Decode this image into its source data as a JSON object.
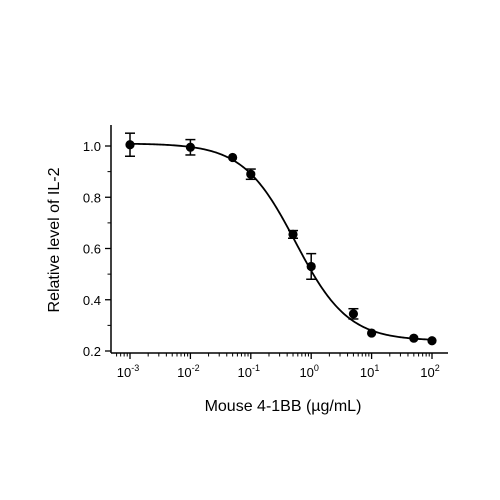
{
  "chart_data": {
    "type": "scatter",
    "title": "",
    "xlabel": "Mouse 4-1BB (µg/mL)",
    "ylabel": "Relative level of IL-2",
    "xscale": "log",
    "xlim": [
      0.0005,
      150
    ],
    "ylim": [
      0.2,
      1.08
    ],
    "x_ticks": [
      {
        "value": 0.001,
        "base": "10",
        "exp": "-3"
      },
      {
        "value": 0.01,
        "base": "10",
        "exp": "-2"
      },
      {
        "value": 0.1,
        "base": "10",
        "exp": "-1"
      },
      {
        "value": 1,
        "base": "10",
        "exp": "0"
      },
      {
        "value": 10,
        "base": "10",
        "exp": "1"
      },
      {
        "value": 100,
        "base": "10",
        "exp": "2"
      }
    ],
    "y_ticks": [
      {
        "value": 0.2,
        "label": "0.2"
      },
      {
        "value": 0.4,
        "label": "0.4"
      },
      {
        "value": 0.6,
        "label": "0.6"
      },
      {
        "value": 0.8,
        "label": "0.8"
      },
      {
        "value": 1.0,
        "label": "1.0"
      }
    ],
    "points": [
      {
        "x": 0.001,
        "y": 1.005,
        "err": 0.045
      },
      {
        "x": 0.01,
        "y": 0.995,
        "err": 0.03
      },
      {
        "x": 0.05,
        "y": 0.955,
        "err": 0
      },
      {
        "x": 0.1,
        "y": 0.89,
        "err": 0.02
      },
      {
        "x": 0.5,
        "y": 0.655,
        "err": 0.015
      },
      {
        "x": 1,
        "y": 0.53,
        "err": 0.05
      },
      {
        "x": 5,
        "y": 0.345,
        "err": 0.02
      },
      {
        "x": 10,
        "y": 0.27,
        "err": 0
      },
      {
        "x": 50,
        "y": 0.25,
        "err": 0
      },
      {
        "x": 100,
        "y": 0.24,
        "err": 0
      }
    ],
    "fit": {
      "model": "4PL",
      "top": 1.01,
      "bottom": 0.24,
      "ec50": 0.55,
      "hill": 1.0
    },
    "grid": false,
    "legend": "none",
    "color": "#000000"
  }
}
